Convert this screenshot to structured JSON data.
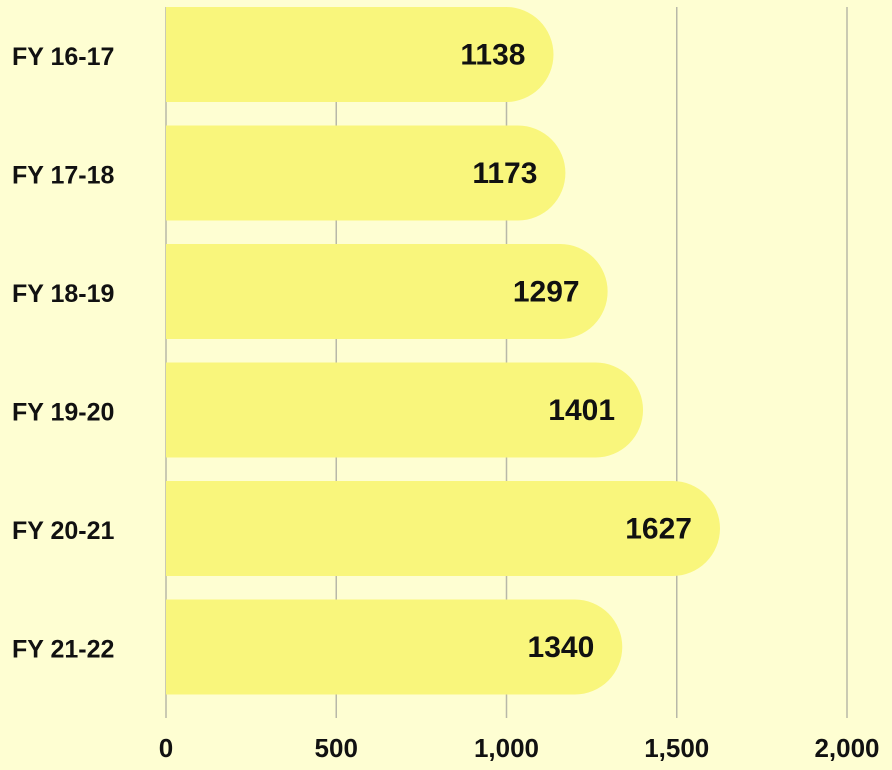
{
  "chart_data": {
    "type": "bar",
    "orientation": "horizontal",
    "categories": [
      "FY 16-17",
      "FY 17-18",
      "FY 18-19",
      "FY 19-20",
      "FY 20-21",
      "FY 21-22"
    ],
    "values": [
      1138,
      1173,
      1297,
      1401,
      1627,
      1340
    ],
    "color": "#f9f67c",
    "xlim": [
      0,
      2000
    ],
    "xticks": [
      0,
      500,
      {
        "value": 1000,
        "label": "1,000"
      },
      {
        "value": 1500,
        "label": "1,500"
      },
      {
        "value": 2000,
        "label": "2,000"
      }
    ],
    "grid": true
  }
}
